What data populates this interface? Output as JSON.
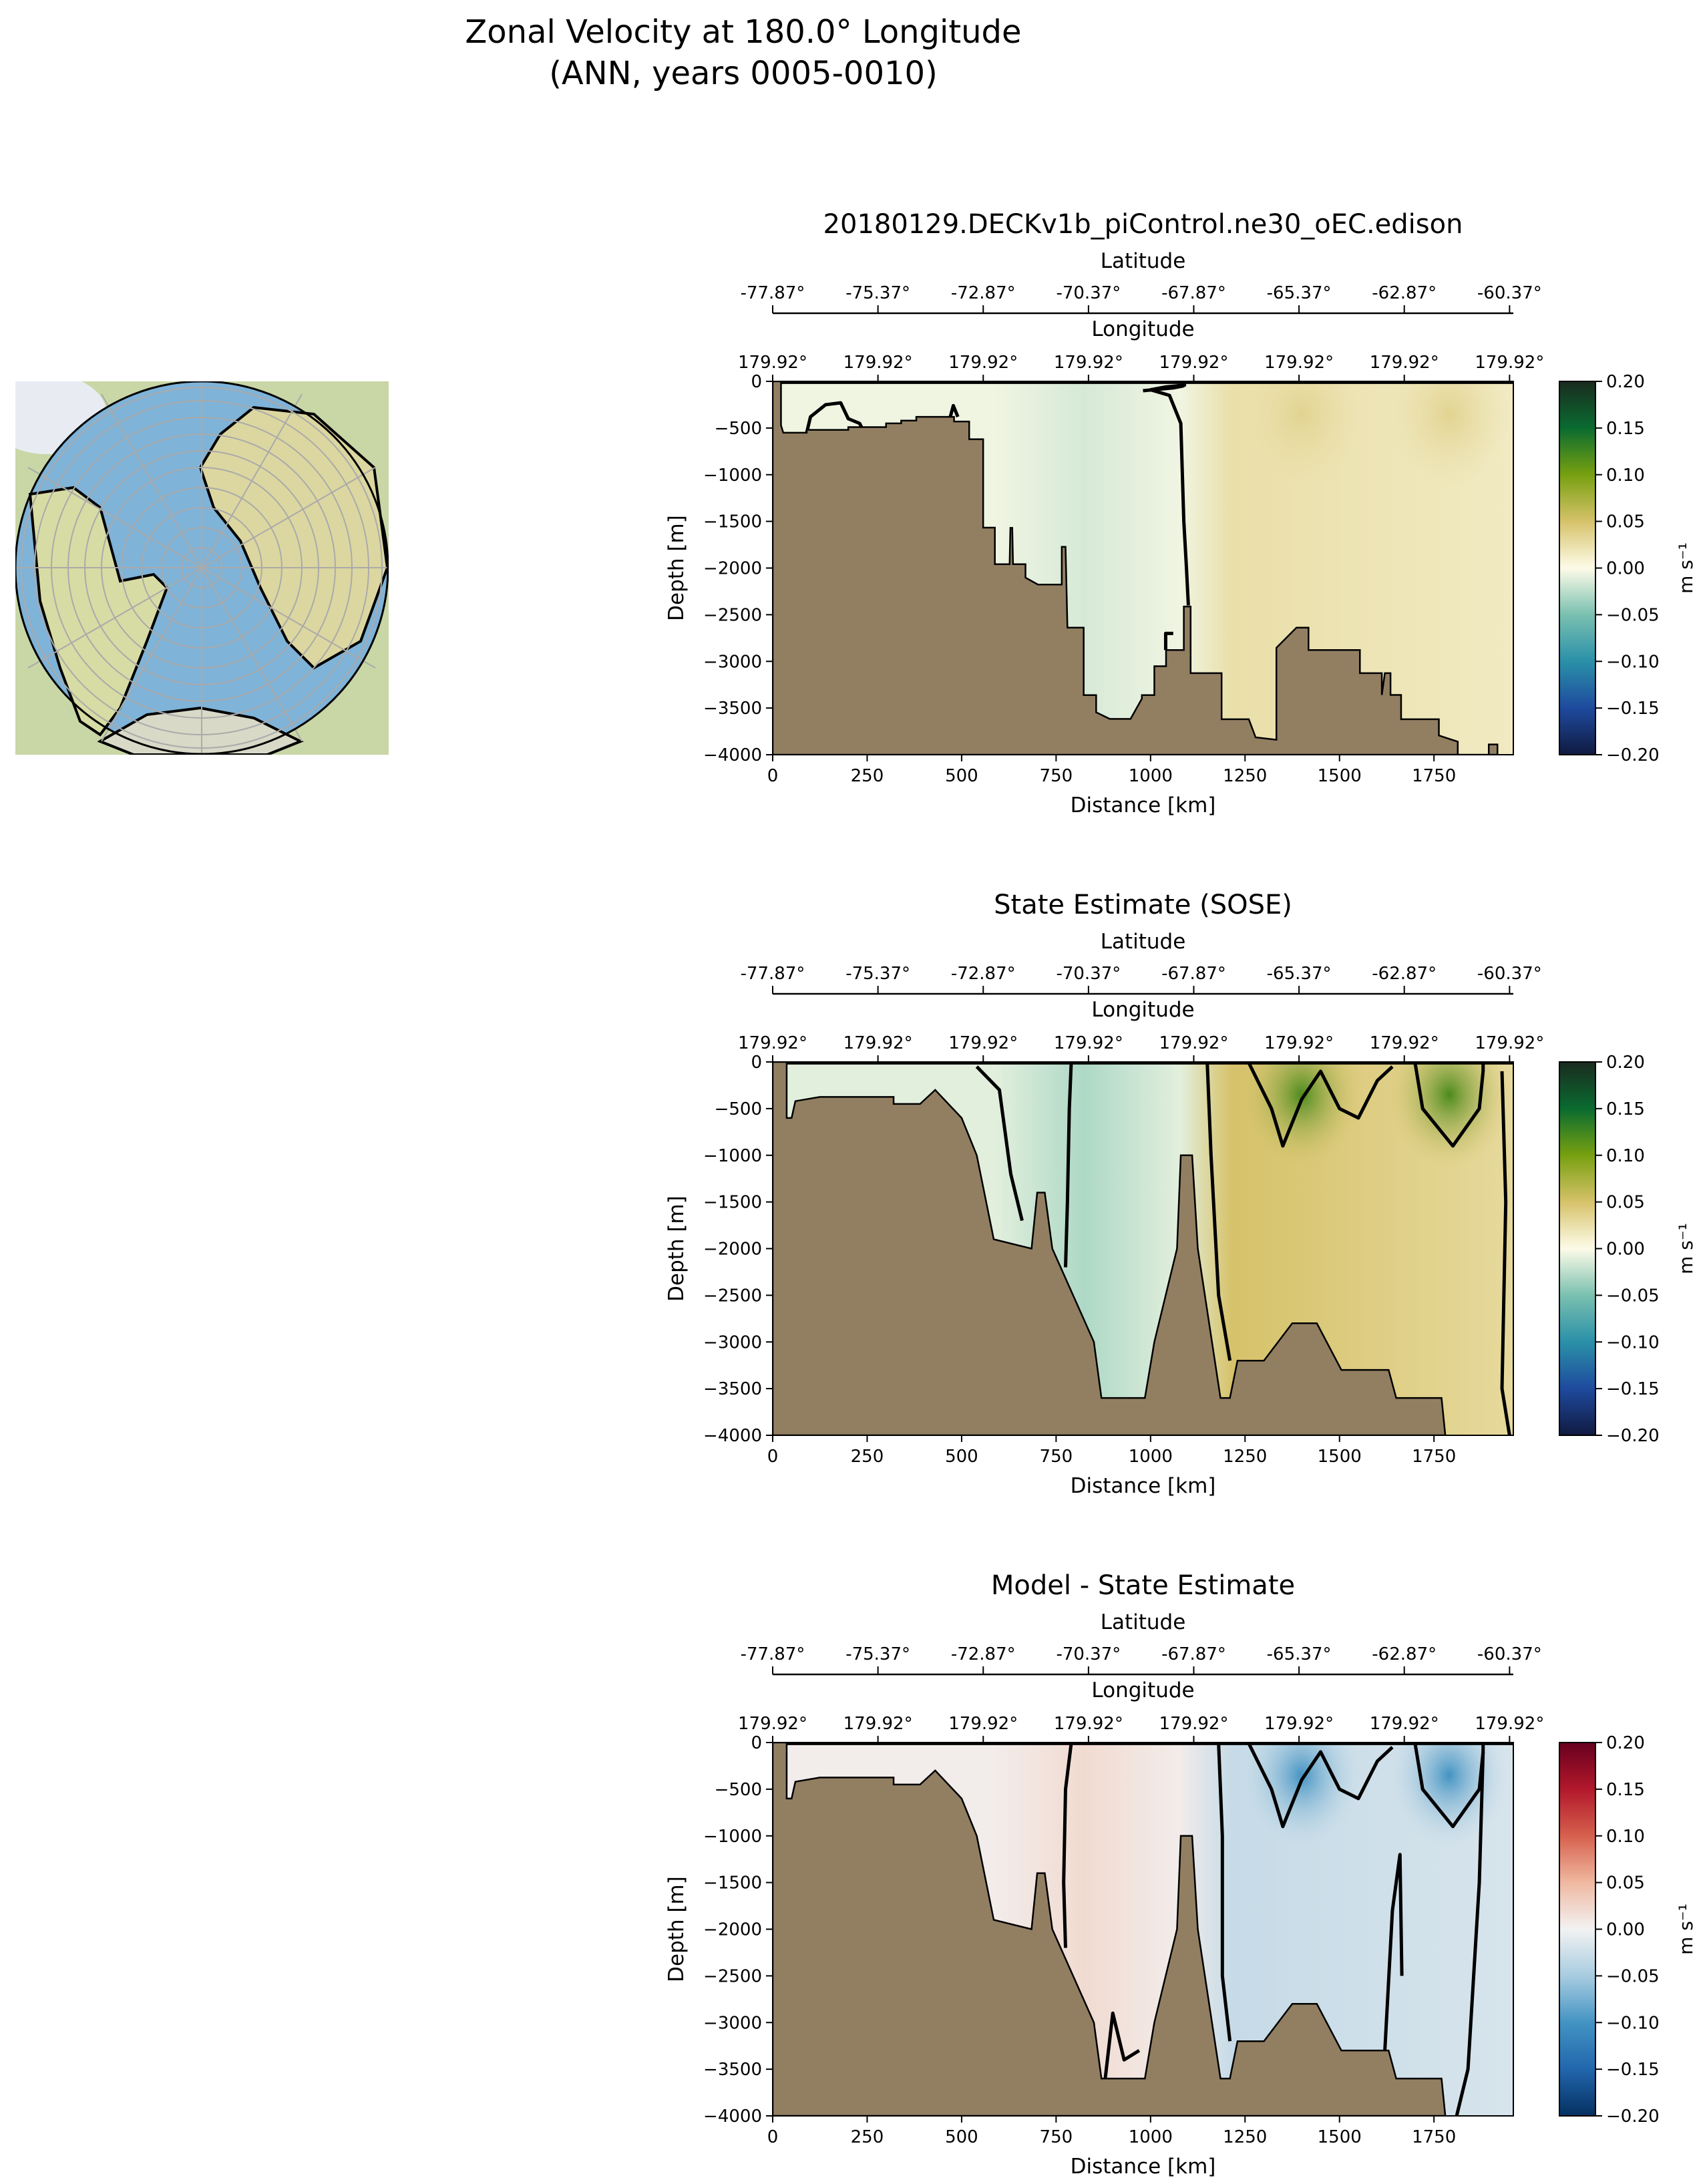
{
  "figure": {
    "title_line1": "Zonal Velocity at 180.0° Longitude",
    "title_line2": "(ANN, years 0005-0010)"
  },
  "colors": {
    "land": "#927f62",
    "earth_cmap": [
      "#101a40",
      "#1e4a9e",
      "#2a90a8",
      "#7ac0b0",
      "#fdfbe8",
      "#d6c26a",
      "#77a010",
      "#0a6b30",
      "#1a2b1f"
    ],
    "diff_cmap": [
      "#053061",
      "#2166ac",
      "#4393c3",
      "#a8cce0",
      "#f2f2f2",
      "#f0b8a0",
      "#d6604d",
      "#b2182b",
      "#67001f"
    ]
  },
  "chart_data": [
    {
      "type": "heatmap",
      "title": "20180129.DECKv1b_piControl.ne30_oEC.edison",
      "xlabel": "Distance [km]",
      "ylabel": "Depth [m]",
      "top_axis1_label": "Latitude",
      "top_axis2_label": "Longitude",
      "xlim": [
        0,
        1960
      ],
      "ylim": [
        -4000,
        0
      ],
      "xticks": [
        "0",
        "250",
        "500",
        "750",
        "1000",
        "1250",
        "1500",
        "1750"
      ],
      "yticks": [
        "0",
        "−500",
        "−1000",
        "−1500",
        "−2000",
        "−2500",
        "−3000",
        "−3500",
        "−4000"
      ],
      "lat_ticks": [
        "-77.87°",
        "-75.37°",
        "-72.87°",
        "-70.37°",
        "-67.87°",
        "-65.37°",
        "-62.87°",
        "-60.37°"
      ],
      "lon_ticks": [
        "179.92°",
        "179.92°",
        "179.92°",
        "179.92°",
        "179.92°",
        "179.92°",
        "179.92°",
        "179.92°"
      ],
      "colorbar_label": "m s⁻¹",
      "colorbar_ticks": [
        "0.20",
        "0.15",
        "0.10",
        "0.05",
        "0.00",
        "−0.05",
        "−0.10",
        "−0.15",
        "−0.20"
      ],
      "clim": [
        -0.2,
        0.2
      ],
      "cmap": "earth",
      "field": {
        "left": -0.005,
        "mid": -0.015,
        "right": 0.025,
        "right_top": 0.035
      },
      "bathymetry": [
        [
          0,
          0
        ],
        [
          22,
          0
        ],
        [
          22,
          -470
        ],
        [
          28,
          -550
        ],
        [
          90,
          -550
        ],
        [
          90,
          -520
        ],
        [
          200,
          -520
        ],
        [
          200,
          -490
        ],
        [
          300,
          -490
        ],
        [
          300,
          -450
        ],
        [
          340,
          -450
        ],
        [
          340,
          -420
        ],
        [
          380,
          -420
        ],
        [
          380,
          -380
        ],
        [
          480,
          -380
        ],
        [
          480,
          -430
        ],
        [
          520,
          -430
        ],
        [
          520,
          -620
        ],
        [
          557,
          -620
        ],
        [
          557,
          -1567
        ],
        [
          588,
          -1567
        ],
        [
          588,
          -1959
        ],
        [
          627,
          -1959
        ],
        [
          629,
          -1570
        ],
        [
          634,
          -1570
        ],
        [
          636,
          -1959
        ],
        [
          669,
          -1959
        ],
        [
          669,
          -2103
        ],
        [
          702,
          -2177
        ],
        [
          765,
          -2177
        ],
        [
          765,
          -1773
        ],
        [
          775,
          -1773
        ],
        [
          780,
          -2639
        ],
        [
          823,
          -2639
        ],
        [
          823,
          -3361
        ],
        [
          856,
          -3361
        ],
        [
          856,
          -3546
        ],
        [
          892,
          -3616
        ],
        [
          947,
          -3616
        ],
        [
          977,
          -3400
        ],
        [
          977,
          -3361
        ],
        [
          1010,
          -3361
        ],
        [
          1010,
          -3052
        ],
        [
          1041,
          -3052
        ],
        [
          1041,
          -2878
        ],
        [
          1088,
          -2878
        ],
        [
          1088,
          -2412
        ],
        [
          1106,
          -2412
        ],
        [
          1106,
          -3126
        ],
        [
          1188,
          -3126
        ],
        [
          1188,
          -3620
        ],
        [
          1260,
          -3620
        ],
        [
          1278,
          -3814
        ],
        [
          1333,
          -3840
        ],
        [
          1333,
          -2854
        ],
        [
          1386,
          -2639
        ],
        [
          1418,
          -2639
        ],
        [
          1418,
          -2878
        ],
        [
          1554,
          -2878
        ],
        [
          1554,
          -3126
        ],
        [
          1612,
          -3126
        ],
        [
          1612,
          -3360
        ],
        [
          1620,
          -3126
        ],
        [
          1635,
          -3126
        ],
        [
          1635,
          -3360
        ],
        [
          1663,
          -3360
        ],
        [
          1663,
          -3620
        ],
        [
          1763,
          -3620
        ],
        [
          1763,
          -3794
        ],
        [
          1813,
          -3860
        ],
        [
          1813,
          -4000
        ],
        [
          1895,
          -4000
        ],
        [
          1895,
          -3890
        ],
        [
          1918,
          -3890
        ],
        [
          1918,
          -4000
        ],
        [
          0,
          -4000
        ]
      ],
      "contours": [
        [
          [
            980,
            -100
          ],
          [
            1060,
            -70
          ],
          [
            1085,
            -50
          ],
          [
            1090,
            -40
          ],
          [
            1040,
            -60
          ],
          [
            1000,
            -90
          ],
          [
            1050,
            -150
          ],
          [
            1080,
            -450
          ],
          [
            1088,
            -1500
          ],
          [
            1095,
            -2000
          ],
          [
            1100,
            -2400
          ]
        ],
        [
          [
            1040,
            -2878
          ],
          [
            1040,
            -2700
          ],
          [
            1060,
            -2700
          ]
        ],
        [
          [
            90,
            -550
          ],
          [
            100,
            -380
          ],
          [
            140,
            -250
          ],
          [
            180,
            -230
          ],
          [
            200,
            -400
          ],
          [
            230,
            -450
          ],
          [
            235,
            -490
          ]
        ],
        [
          [
            470,
            -380
          ],
          [
            478,
            -260
          ],
          [
            490,
            -380
          ]
        ],
        [
          [
            0,
            -10
          ],
          [
            1960,
            -10
          ]
        ]
      ]
    },
    {
      "type": "heatmap",
      "title": "State Estimate (SOSE)",
      "xlabel": "Distance [km]",
      "ylabel": "Depth [m]",
      "top_axis1_label": "Latitude",
      "top_axis2_label": "Longitude",
      "xlim": [
        0,
        1960
      ],
      "ylim": [
        -4000,
        0
      ],
      "xticks": [
        "0",
        "250",
        "500",
        "750",
        "1000",
        "1250",
        "1500",
        "1750"
      ],
      "yticks": [
        "0",
        "−500",
        "−1000",
        "−1500",
        "−2000",
        "−2500",
        "−3000",
        "−3500",
        "−4000"
      ],
      "lat_ticks": [
        "-77.87°",
        "-75.37°",
        "-72.87°",
        "-70.37°",
        "-67.87°",
        "-65.37°",
        "-62.87°",
        "-60.37°"
      ],
      "lon_ticks": [
        "179.92°",
        "179.92°",
        "179.92°",
        "179.92°",
        "179.92°",
        "179.92°",
        "179.92°",
        "179.92°"
      ],
      "colorbar_label": "m s⁻¹",
      "colorbar_ticks": [
        "0.20",
        "0.15",
        "0.10",
        "0.05",
        "0.00",
        "−0.05",
        "−0.10",
        "−0.15",
        "−0.20"
      ],
      "clim": [
        -0.2,
        0.2
      ],
      "cmap": "earth",
      "field": {
        "left": -0.01,
        "mid": -0.03,
        "right": 0.05,
        "right_top": 0.12
      },
      "bathymetry": [
        [
          0,
          0
        ],
        [
          37,
          0
        ],
        [
          37,
          -600
        ],
        [
          50,
          -600
        ],
        [
          60,
          -420
        ],
        [
          125,
          -375
        ],
        [
          320,
          -375
        ],
        [
          320,
          -450
        ],
        [
          390,
          -450
        ],
        [
          430,
          -300
        ],
        [
          500,
          -600
        ],
        [
          540,
          -1000
        ],
        [
          585,
          -1900
        ],
        [
          685,
          -2000
        ],
        [
          700,
          -1400
        ],
        [
          720,
          -1400
        ],
        [
          740,
          -2000
        ],
        [
          795,
          -2500
        ],
        [
          850,
          -3000
        ],
        [
          870,
          -3600
        ],
        [
          985,
          -3600
        ],
        [
          1010,
          -3000
        ],
        [
          1070,
          -2000
        ],
        [
          1080,
          -1000
        ],
        [
          1110,
          -1000
        ],
        [
          1125,
          -2000
        ],
        [
          1185,
          -3600
        ],
        [
          1210,
          -3600
        ],
        [
          1230,
          -3200
        ],
        [
          1300,
          -3200
        ],
        [
          1375,
          -2800
        ],
        [
          1440,
          -2800
        ],
        [
          1505,
          -3300
        ],
        [
          1630,
          -3300
        ],
        [
          1650,
          -3600
        ],
        [
          1770,
          -3600
        ],
        [
          1780,
          -4000
        ],
        [
          0,
          -4000
        ]
      ],
      "contours": [
        [
          [
            790,
            -10
          ],
          [
            785,
            -500
          ],
          [
            780,
            -1500
          ],
          [
            775,
            -2200
          ]
        ],
        [
          [
            1150,
            -10
          ],
          [
            1160,
            -1000
          ],
          [
            1180,
            -2500
          ],
          [
            1210,
            -3200
          ]
        ],
        [
          [
            1260,
            -10
          ],
          [
            1320,
            -500
          ],
          [
            1350,
            -900
          ],
          [
            1400,
            -400
          ],
          [
            1450,
            -100
          ],
          [
            1500,
            -500
          ],
          [
            1550,
            -600
          ],
          [
            1600,
            -200
          ],
          [
            1640,
            -50
          ]
        ],
        [
          [
            1700,
            -10
          ],
          [
            1720,
            -500
          ],
          [
            1800,
            -900
          ],
          [
            1870,
            -500
          ],
          [
            1880,
            -100
          ],
          [
            1880,
            -10
          ]
        ],
        [
          [
            1930,
            -100
          ],
          [
            1940,
            -1500
          ],
          [
            1930,
            -3500
          ],
          [
            1950,
            -4000
          ]
        ],
        [
          [
            0,
            -10
          ],
          [
            1960,
            -10
          ]
        ],
        [
          [
            540,
            -50
          ],
          [
            600,
            -300
          ],
          [
            630,
            -1200
          ],
          [
            660,
            -1700
          ]
        ]
      ]
    },
    {
      "type": "heatmap",
      "title": "Model - State Estimate",
      "xlabel": "Distance [km]",
      "ylabel": "Depth [m]",
      "top_axis1_label": "Latitude",
      "top_axis2_label": "Longitude",
      "xlim": [
        0,
        1960
      ],
      "ylim": [
        -4000,
        0
      ],
      "xticks": [
        "0",
        "250",
        "500",
        "750",
        "1000",
        "1250",
        "1500",
        "1750"
      ],
      "yticks": [
        "0",
        "−500",
        "−1000",
        "−1500",
        "−2000",
        "−2500",
        "−3000",
        "−3500",
        "−4000"
      ],
      "lat_ticks": [
        "-77.87°",
        "-75.37°",
        "-72.87°",
        "-70.37°",
        "-67.87°",
        "-65.37°",
        "-62.87°",
        "-60.37°"
      ],
      "lon_ticks": [
        "179.92°",
        "179.92°",
        "179.92°",
        "179.92°",
        "179.92°",
        "179.92°",
        "179.92°",
        "179.92°"
      ],
      "colorbar_label": "m s⁻¹",
      "colorbar_ticks": [
        "0.20",
        "0.15",
        "0.10",
        "0.05",
        "0.00",
        "−0.05",
        "−0.10",
        "−0.15",
        "−0.20"
      ],
      "clim": [
        -0.2,
        0.2
      ],
      "cmap": "diff",
      "field": {
        "left": 0.005,
        "mid": 0.02,
        "right": -0.03,
        "right_top": -0.1
      },
      "bathymetry": [
        [
          0,
          0
        ],
        [
          37,
          0
        ],
        [
          37,
          -600
        ],
        [
          50,
          -600
        ],
        [
          60,
          -420
        ],
        [
          125,
          -375
        ],
        [
          320,
          -375
        ],
        [
          320,
          -450
        ],
        [
          390,
          -450
        ],
        [
          430,
          -300
        ],
        [
          500,
          -600
        ],
        [
          540,
          -1000
        ],
        [
          585,
          -1900
        ],
        [
          685,
          -2000
        ],
        [
          700,
          -1400
        ],
        [
          720,
          -1400
        ],
        [
          740,
          -2000
        ],
        [
          795,
          -2500
        ],
        [
          850,
          -3000
        ],
        [
          870,
          -3600
        ],
        [
          985,
          -3600
        ],
        [
          1010,
          -3000
        ],
        [
          1070,
          -2000
        ],
        [
          1080,
          -1000
        ],
        [
          1110,
          -1000
        ],
        [
          1125,
          -2000
        ],
        [
          1185,
          -3600
        ],
        [
          1210,
          -3600
        ],
        [
          1230,
          -3200
        ],
        [
          1300,
          -3200
        ],
        [
          1375,
          -2800
        ],
        [
          1440,
          -2800
        ],
        [
          1505,
          -3300
        ],
        [
          1630,
          -3300
        ],
        [
          1650,
          -3600
        ],
        [
          1770,
          -3600
        ],
        [
          1780,
          -4000
        ],
        [
          0,
          -4000
        ]
      ],
      "contours": [
        [
          [
            790,
            -10
          ],
          [
            775,
            -500
          ],
          [
            770,
            -1500
          ],
          [
            775,
            -2200
          ]
        ],
        [
          [
            1180,
            -10
          ],
          [
            1190,
            -1000
          ],
          [
            1190,
            -2500
          ],
          [
            1210,
            -3200
          ]
        ],
        [
          [
            1260,
            -10
          ],
          [
            1320,
            -500
          ],
          [
            1350,
            -900
          ],
          [
            1400,
            -400
          ],
          [
            1450,
            -100
          ],
          [
            1500,
            -500
          ],
          [
            1550,
            -600
          ],
          [
            1600,
            -200
          ],
          [
            1640,
            -50
          ]
        ],
        [
          [
            1700,
            -10
          ],
          [
            1720,
            -500
          ],
          [
            1800,
            -900
          ],
          [
            1870,
            -500
          ],
          [
            1880,
            -100
          ],
          [
            1880,
            -10
          ]
        ],
        [
          [
            1880,
            -100
          ],
          [
            1870,
            -1500
          ],
          [
            1840,
            -3500
          ],
          [
            1810,
            -4000
          ]
        ],
        [
          [
            0,
            -10
          ],
          [
            1960,
            -10
          ]
        ],
        [
          [
            1620,
            -3300
          ],
          [
            1640,
            -1800
          ],
          [
            1660,
            -1200
          ],
          [
            1665,
            -2500
          ]
        ],
        [
          [
            880,
            -3600
          ],
          [
            900,
            -2900
          ],
          [
            930,
            -3400
          ],
          [
            970,
            -3300
          ]
        ]
      ]
    }
  ]
}
